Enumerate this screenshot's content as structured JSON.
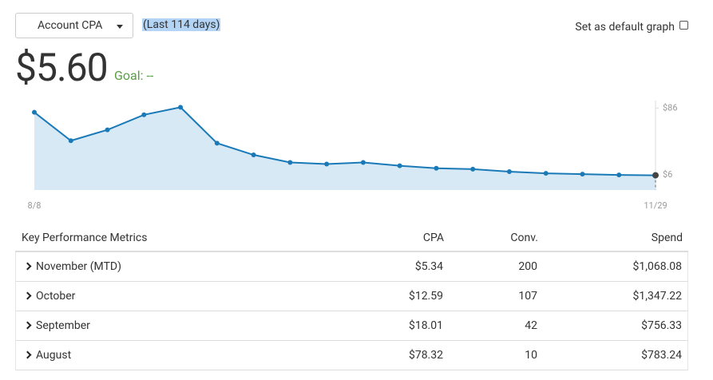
{
  "controls": {
    "dropdown": "Account CPA",
    "range": "(Last 114 days)",
    "default_checkbox": "Set as default graph"
  },
  "headline": {
    "value": "$5.60",
    "goal": "Goal: --"
  },
  "chart_data": {
    "type": "area",
    "categories": [
      "8/8",
      null,
      null,
      null,
      null,
      null,
      null,
      null,
      null,
      null,
      null,
      null,
      null,
      null,
      null,
      null,
      null,
      "11/29"
    ],
    "values": [
      81,
      47,
      60,
      78,
      87,
      44,
      30,
      21,
      19,
      21,
      17,
      14,
      13,
      10,
      8,
      7,
      6,
      5.6
    ],
    "color": "#1a7ab8",
    "fill": "#d7e9f5",
    "last_point_color": "#444444",
    "ylim": [
      -12,
      95
    ],
    "yticks": [
      {
        "value": 6,
        "label": "$6"
      },
      {
        "value": 86,
        "label": "$86"
      }
    ],
    "axis_side": "right"
  },
  "table": {
    "header": [
      "Key Performance Metrics",
      "CPA",
      "Conv.",
      "Spend"
    ],
    "rows": [
      [
        "November (MTD)",
        "$5.34",
        "200",
        "$1,068.08"
      ],
      [
        "October",
        "$12.59",
        "107",
        "$1,347.22"
      ],
      [
        "September",
        "$18.01",
        "42",
        "$756.33"
      ],
      [
        "August",
        "$78.32",
        "10",
        "$783.24"
      ]
    ]
  }
}
